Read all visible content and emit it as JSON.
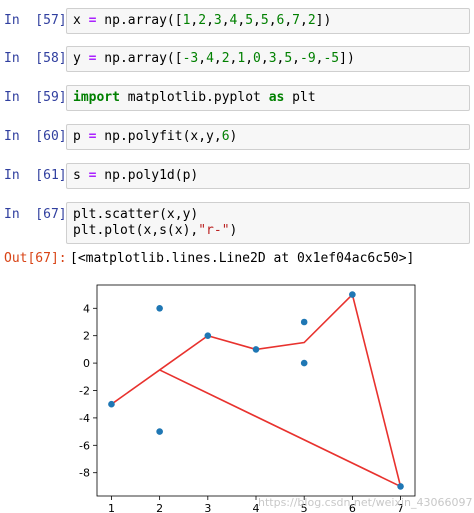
{
  "cells": [
    {
      "prompt": "In  [57]:",
      "code_parts": [
        "x ",
        "=",
        " np.array([",
        "1",
        ",",
        "2",
        ",",
        "3",
        ",",
        "4",
        ",",
        "5",
        ",",
        "5",
        ",",
        "6",
        ",",
        "7",
        ",",
        "2",
        "])"
      ]
    },
    {
      "prompt": "In  [58]:",
      "code_parts": [
        "y ",
        "=",
        " np.array([",
        "-3",
        ",",
        "4",
        ",",
        "2",
        ",",
        "1",
        ",",
        "0",
        ",",
        "3",
        ",",
        "5",
        ",",
        "-9",
        ",",
        "-5",
        "])"
      ]
    },
    {
      "prompt": "In  [59]:",
      "code_parts": [
        "import",
        " matplotlib.pyplot ",
        "as",
        " plt"
      ]
    },
    {
      "prompt": "In  [60]:",
      "code_parts": [
        "p ",
        "=",
        " np.polyfit(x,y,",
        "6",
        ")"
      ]
    },
    {
      "prompt": "In  [61]:",
      "code_parts": [
        "s ",
        "=",
        " np.poly1d(p)"
      ]
    },
    {
      "prompt": "In  [67]:",
      "code_line1": "plt.scatter(x,y)",
      "code_line2_parts": [
        "plt.plot(x,s(x),",
        "\"r-\"",
        ")"
      ]
    }
  ],
  "output": {
    "prompt": "Out[67]:",
    "text": "[<matplotlib.lines.Line2D at 0x1ef04ac6c50>]"
  },
  "watermark": "https://blog.csdn.net/weixin_43066097",
  "chart_data": {
    "type": "scatter",
    "x_ticks": [
      "1",
      "2",
      "3",
      "4",
      "5",
      "6",
      "7"
    ],
    "y_ticks": [
      "-8",
      "-6",
      "-4",
      "-2",
      "0",
      "2",
      "4"
    ],
    "xlim": [
      0.7,
      7.3
    ],
    "ylim": [
      -9.7,
      5.7
    ],
    "scatter_color": "#1f77b4",
    "line_color": "#e8322e",
    "scatter": {
      "x": [
        1,
        2,
        3,
        4,
        5,
        5,
        6,
        7,
        2
      ],
      "y": [
        -3,
        4,
        2,
        1,
        0,
        3,
        5,
        -9,
        -5
      ]
    },
    "line": {
      "x": [
        1,
        2,
        3,
        4,
        5,
        5,
        6,
        7,
        2
      ],
      "y": [
        -3,
        -0.5,
        2,
        1,
        1.5,
        1.5,
        5,
        -9,
        -0.5
      ]
    }
  }
}
